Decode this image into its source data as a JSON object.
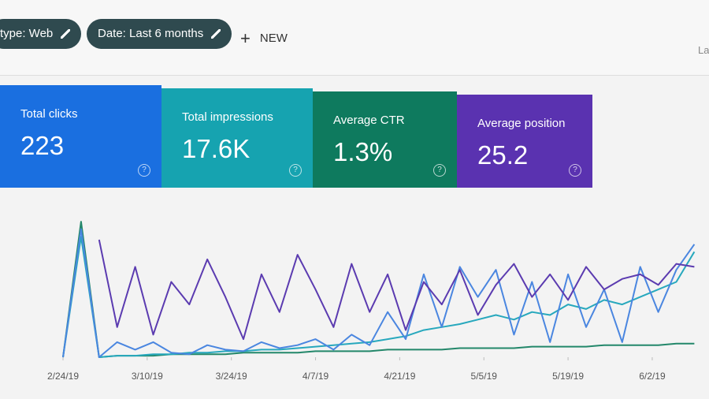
{
  "header": {
    "chips": [
      "type: Web",
      "Date: Last 6 months"
    ],
    "new_button": "NEW",
    "cut_text": "La"
  },
  "metrics": [
    {
      "label": "Total clicks",
      "value": "223",
      "color": "#1a6fe0"
    },
    {
      "label": "Total impressions",
      "value": "17.6K",
      "color": "#16a3b0"
    },
    {
      "label": "Average CTR",
      "value": "1.3%",
      "color": "#0e7a5e"
    },
    {
      "label": "Average position",
      "value": "25.2",
      "color": "#5a32b0"
    }
  ],
  "chart_data": {
    "type": "line",
    "x": [
      0,
      3,
      6,
      9,
      12,
      15,
      18,
      21,
      24,
      27,
      30,
      33,
      36,
      39,
      42,
      45,
      48,
      51,
      54,
      57,
      60,
      63,
      66,
      69,
      72,
      75,
      78,
      81,
      84,
      87,
      90,
      93,
      96,
      99,
      102,
      105
    ],
    "xlim": [
      0,
      106
    ],
    "xticks": [
      {
        "value": 0,
        "label": "2/24/19"
      },
      {
        "value": 14,
        "label": "3/10/19"
      },
      {
        "value": 28,
        "label": "3/24/19"
      },
      {
        "value": 42,
        "label": "4/7/19"
      },
      {
        "value": 56,
        "label": "4/21/19"
      },
      {
        "value": 70,
        "label": "5/5/19"
      },
      {
        "value": 84,
        "label": "5/19/19"
      },
      {
        "value": 98,
        "label": "6/2/19"
      }
    ],
    "ylim": [
      0,
      100
    ],
    "series": [
      {
        "color": "#5b3bb0",
        "values": [
          null,
          null,
          78,
          20,
          60,
          15,
          50,
          35,
          65,
          40,
          12,
          55,
          30,
          68,
          45,
          20,
          62,
          30,
          55,
          18,
          50,
          35,
          58,
          28,
          48,
          62,
          40,
          55,
          38,
          60,
          45,
          52,
          55,
          48,
          62,
          60
        ]
      },
      {
        "color": "#4a86e0",
        "values": [
          0,
          85,
          0,
          10,
          5,
          10,
          3,
          2,
          8,
          5,
          4,
          10,
          6,
          8,
          12,
          5,
          15,
          8,
          30,
          12,
          55,
          20,
          60,
          40,
          58,
          15,
          50,
          10,
          55,
          20,
          45,
          10,
          60,
          30,
          58,
          75
        ]
      },
      {
        "color": "#27a8bd",
        "values": [
          0,
          80,
          0,
          1,
          1,
          2,
          2,
          3,
          3,
          4,
          4,
          5,
          5,
          6,
          7,
          8,
          9,
          10,
          12,
          14,
          18,
          20,
          22,
          25,
          28,
          25,
          30,
          28,
          35,
          32,
          38,
          35,
          40,
          45,
          50,
          70
        ]
      },
      {
        "color": "#23876a",
        "values": [
          0,
          90,
          0,
          1,
          1,
          1,
          2,
          2,
          2,
          2,
          3,
          3,
          3,
          3,
          4,
          4,
          4,
          4,
          5,
          5,
          5,
          5,
          6,
          6,
          6,
          6,
          7,
          7,
          7,
          7,
          8,
          8,
          8,
          8,
          9,
          9
        ]
      }
    ]
  }
}
